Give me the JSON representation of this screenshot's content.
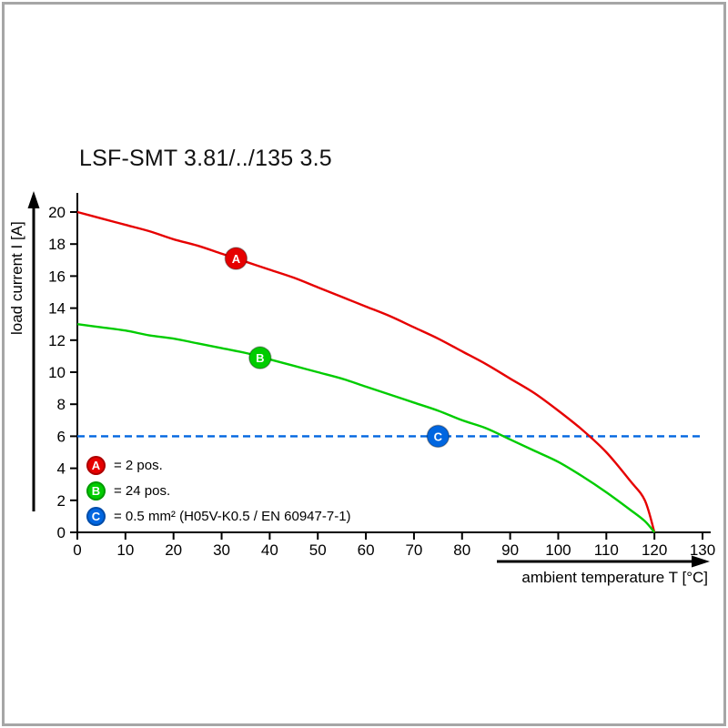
{
  "page": {
    "title": "LSF-SMT 3.81/../135 3.5"
  },
  "chart_data": {
    "type": "line",
    "title": "LSF-SMT 3.81/../135 3.5",
    "xlabel": "ambient temperature T [°C]",
    "ylabel": "load current I [A]",
    "xlim": [
      0,
      130
    ],
    "ylim": [
      0,
      20
    ],
    "x_ticks": [
      0,
      10,
      20,
      30,
      40,
      50,
      60,
      70,
      80,
      90,
      100,
      110,
      120,
      130
    ],
    "y_ticks": [
      0,
      2,
      4,
      6,
      8,
      10,
      12,
      14,
      16,
      18,
      20
    ],
    "grid": false,
    "legend_position": "inside-bottom-left",
    "series": [
      {
        "name": "A",
        "legend_text": "= 2 pos.",
        "color": "#e60000",
        "style": "solid",
        "marker": {
          "x": 33,
          "y": 17.1
        },
        "points": [
          [
            0,
            20
          ],
          [
            5,
            19.6
          ],
          [
            10,
            19.2
          ],
          [
            15,
            18.8
          ],
          [
            20,
            18.3
          ],
          [
            25,
            17.9
          ],
          [
            30,
            17.4
          ],
          [
            35,
            16.9
          ],
          [
            40,
            16.4
          ],
          [
            45,
            15.9
          ],
          [
            50,
            15.3
          ],
          [
            55,
            14.7
          ],
          [
            60,
            14.1
          ],
          [
            65,
            13.5
          ],
          [
            70,
            12.8
          ],
          [
            75,
            12.1
          ],
          [
            80,
            11.3
          ],
          [
            85,
            10.5
          ],
          [
            90,
            9.6
          ],
          [
            95,
            8.7
          ],
          [
            100,
            7.6
          ],
          [
            105,
            6.4
          ],
          [
            110,
            5.0
          ],
          [
            115,
            3.2
          ],
          [
            118,
            2.0
          ],
          [
            120,
            0
          ]
        ]
      },
      {
        "name": "B",
        "legend_text": "= 24 pos.",
        "color": "#00cc00",
        "style": "solid",
        "marker": {
          "x": 38,
          "y": 10.9
        },
        "points": [
          [
            0,
            13
          ],
          [
            5,
            12.8
          ],
          [
            10,
            12.6
          ],
          [
            15,
            12.3
          ],
          [
            20,
            12.1
          ],
          [
            25,
            11.8
          ],
          [
            30,
            11.5
          ],
          [
            35,
            11.2
          ],
          [
            40,
            10.8
          ],
          [
            45,
            10.4
          ],
          [
            50,
            10.0
          ],
          [
            55,
            9.6
          ],
          [
            60,
            9.1
          ],
          [
            65,
            8.6
          ],
          [
            70,
            8.1
          ],
          [
            75,
            7.6
          ],
          [
            80,
            7.0
          ],
          [
            85,
            6.5
          ],
          [
            90,
            5.8
          ],
          [
            95,
            5.1
          ],
          [
            100,
            4.4
          ],
          [
            105,
            3.5
          ],
          [
            110,
            2.5
          ],
          [
            115,
            1.4
          ],
          [
            118,
            0.7
          ],
          [
            120,
            0
          ]
        ]
      },
      {
        "name": "C",
        "legend_text": "= 0.5 mm² (H05V-K0.5 / EN 60947-7-1)",
        "color": "#0066e0",
        "style": "dashed",
        "marker": {
          "x": 75,
          "y": 6
        },
        "points": [
          [
            0,
            6
          ],
          [
            130,
            6
          ]
        ]
      }
    ]
  }
}
